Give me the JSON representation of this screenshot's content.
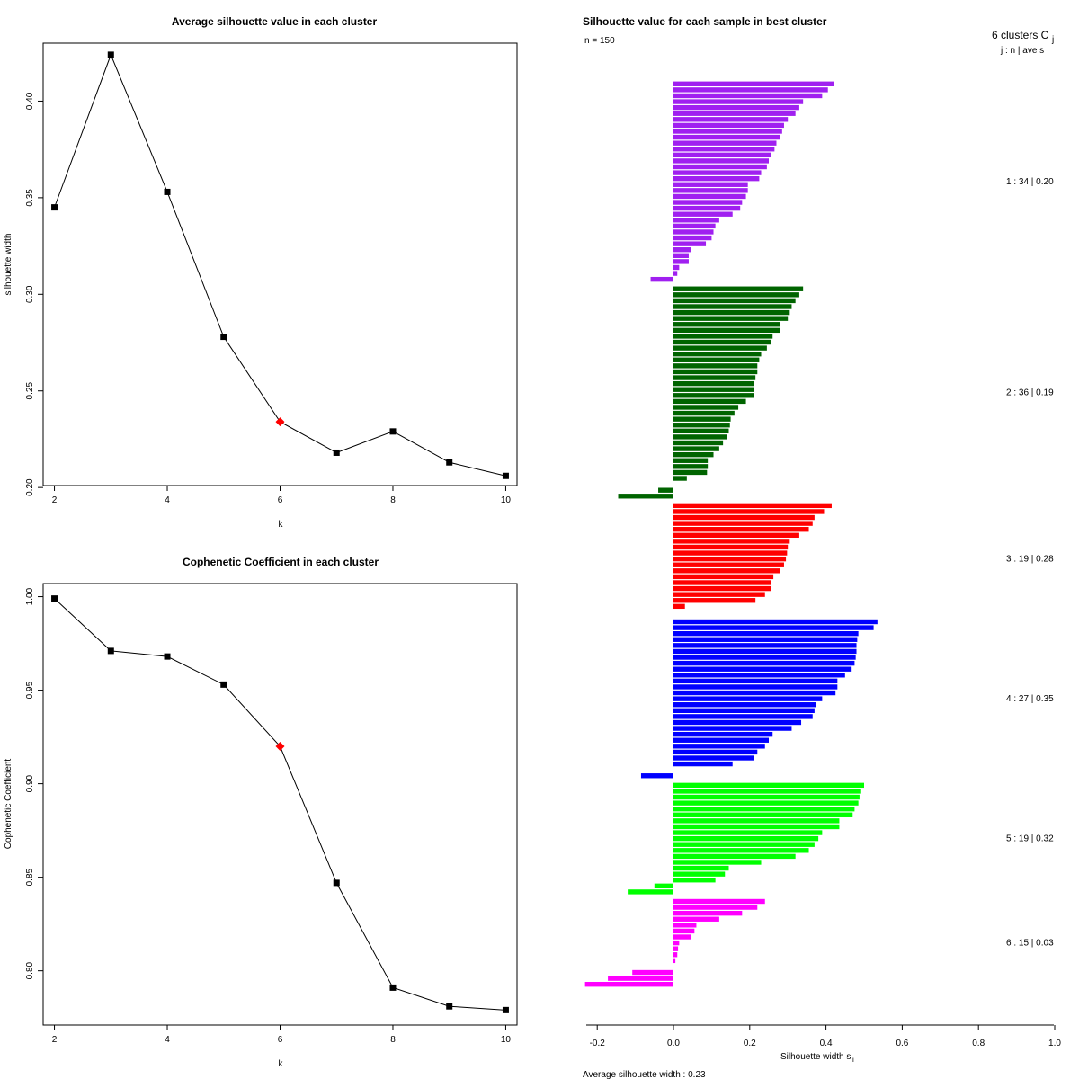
{
  "chart_data": [
    {
      "id": "avg_sil",
      "type": "line",
      "title": "Average silhouette value in each cluster",
      "xlabel": "k",
      "ylabel": "silhouette width",
      "x": [
        2,
        3,
        4,
        5,
        6,
        7,
        8,
        9,
        10
      ],
      "values": [
        0.345,
        0.424,
        0.353,
        0.278,
        0.234,
        0.218,
        0.229,
        0.213,
        0.206
      ],
      "highlight_index": 4,
      "highlight_color": "#ff0000",
      "xlim": [
        1.8,
        10.2
      ],
      "ylim": [
        0.201,
        0.43
      ],
      "xticks": [
        "2",
        "4",
        "6",
        "8",
        "10"
      ],
      "yticks": [
        "0.20",
        "0.25",
        "0.30",
        "0.35",
        "0.40"
      ]
    },
    {
      "id": "cophenetic",
      "type": "line",
      "title": "Cophenetic Coefficient in each cluster",
      "xlabel": "k",
      "ylabel": "Cophenetic Coefficient",
      "x": [
        2,
        3,
        4,
        5,
        6,
        7,
        8,
        9,
        10
      ],
      "values": [
        0.999,
        0.971,
        0.968,
        0.953,
        0.92,
        0.847,
        0.791,
        0.781,
        0.779
      ],
      "highlight_index": 4,
      "highlight_color": "#ff0000",
      "xlim": [
        1.8,
        10.2
      ],
      "ylim": [
        0.771,
        1.007
      ],
      "xticks": [
        "2",
        "4",
        "6",
        "8",
        "10"
      ],
      "yticks": [
        "0.80",
        "0.85",
        "0.90",
        "0.95",
        "1.00"
      ]
    },
    {
      "id": "silhouette_plot",
      "type": "bar",
      "orientation": "horizontal",
      "title": "Silhouette value for each sample in best cluster",
      "n_label": "n = 150",
      "xlabel": "Silhouette width s",
      "xlabel_sub": "i",
      "xlim": [
        -0.22,
        1.0
      ],
      "xticks": [
        "-0.2",
        "0.0",
        "0.2",
        "0.4",
        "0.6",
        "0.8",
        "1.0"
      ],
      "legend_head": "6  clusters  C",
      "legend_head_sub": "j",
      "legend_sub": "j :  n  | ave    s",
      "footer": "Average silhouette width :  0.23",
      "clusters": [
        {
          "label": "1 :   34  |  0.20",
          "color": "#a020f0",
          "values": [
            0.42,
            0.405,
            0.39,
            0.34,
            0.33,
            0.32,
            0.3,
            0.29,
            0.285,
            0.28,
            0.27,
            0.265,
            0.255,
            0.25,
            0.245,
            0.23,
            0.225,
            0.195,
            0.195,
            0.19,
            0.18,
            0.175,
            0.155,
            0.12,
            0.11,
            0.105,
            0.1,
            0.085,
            0.045,
            0.04,
            0.04,
            0.015,
            0.01,
            -0.06
          ]
        },
        {
          "label": "2 :   36  |  0.19",
          "color": "#006400",
          "values": [
            0.34,
            0.33,
            0.32,
            0.31,
            0.305,
            0.3,
            0.28,
            0.28,
            0.26,
            0.255,
            0.245,
            0.23,
            0.225,
            0.22,
            0.22,
            0.215,
            0.21,
            0.21,
            0.21,
            0.19,
            0.17,
            0.16,
            0.15,
            0.148,
            0.145,
            0.14,
            0.13,
            0.12,
            0.105,
            0.09,
            0.09,
            0.088,
            0.035,
            0.0,
            -0.04,
            -0.145
          ]
        },
        {
          "label": "3 :   19  |  0.28",
          "color": "#ff0000",
          "values": [
            0.415,
            0.395,
            0.37,
            0.365,
            0.355,
            0.33,
            0.305,
            0.3,
            0.298,
            0.295,
            0.29,
            0.28,
            0.262,
            0.255,
            0.255,
            0.24,
            0.215,
            0.03,
            0.0
          ]
        },
        {
          "label": "4 :   27  |  0.35",
          "color": "#0000ff",
          "values": [
            0.535,
            0.525,
            0.485,
            0.482,
            0.48,
            0.48,
            0.478,
            0.475,
            0.465,
            0.45,
            0.43,
            0.43,
            0.425,
            0.39,
            0.375,
            0.37,
            0.365,
            0.335,
            0.31,
            0.26,
            0.25,
            0.24,
            0.22,
            0.21,
            0.155,
            0.0,
            -0.085
          ]
        },
        {
          "label": "5 :   19  |  0.32",
          "color": "#00ff00",
          "values": [
            0.5,
            0.49,
            0.488,
            0.485,
            0.475,
            0.47,
            0.435,
            0.435,
            0.39,
            0.38,
            0.37,
            0.355,
            0.32,
            0.23,
            0.145,
            0.135,
            0.11,
            -0.05,
            -0.12
          ]
        },
        {
          "label": "6 :   15  |  0.03",
          "color": "#ff00ff",
          "values": [
            0.24,
            0.22,
            0.18,
            0.12,
            0.06,
            0.055,
            0.045,
            0.015,
            0.012,
            0.01,
            0.005,
            0.0,
            -0.108,
            -0.172,
            -0.232
          ]
        }
      ]
    }
  ]
}
